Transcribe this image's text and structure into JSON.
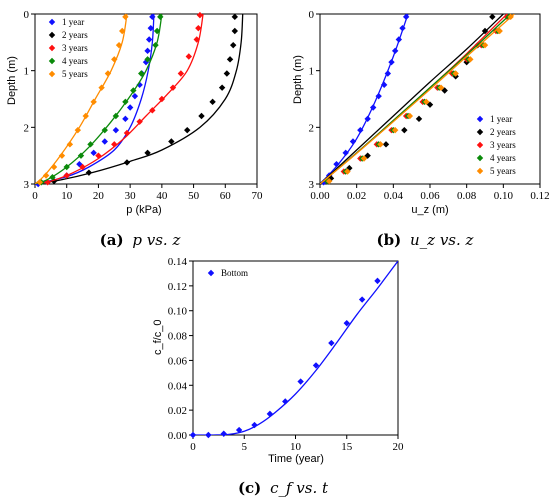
{
  "chart_data": [
    {
      "id": "a",
      "type": "scatter",
      "caption": {
        "letter": "(a)",
        "text": "p vs. z"
      },
      "xlabel": "p (kPa)",
      "ylabel": "Depth (m)",
      "xlim": [
        0,
        70
      ],
      "ylim": [
        0,
        3
      ],
      "y_inverted": true,
      "x_ticks": [
        "0",
        "10",
        "20",
        "30",
        "40",
        "50",
        "60",
        "70"
      ],
      "y_ticks": [
        "0",
        "1",
        "2",
        "3"
      ],
      "legend": "top-left",
      "series": [
        {
          "name": "1 year",
          "color": "#1010ff",
          "points": [
            [
              37,
              0.05
            ],
            [
              36.5,
              0.25
            ],
            [
              36,
              0.45
            ],
            [
              35.5,
              0.65
            ],
            [
              35,
              0.85
            ],
            [
              33.7,
              1.05
            ],
            [
              33,
              1.25
            ],
            [
              31.5,
              1.45
            ],
            [
              30,
              1.65
            ],
            [
              28.5,
              1.85
            ],
            [
              25.5,
              2.05
            ],
            [
              22,
              2.25
            ],
            [
              18.5,
              2.45
            ],
            [
              14,
              2.65
            ],
            [
              10,
              2.85
            ],
            [
              1,
              3.0
            ]
          ],
          "curve": [
            [
              37.5,
              0
            ],
            [
              37,
              0.5
            ],
            [
              35.7,
              1.0
            ],
            [
              33.5,
              1.5
            ],
            [
              30,
              2.0
            ],
            [
              25,
              2.4
            ],
            [
              17,
              2.7
            ],
            [
              10,
              2.87
            ],
            [
              0,
              3.0
            ]
          ]
        },
        {
          "name": "2 years",
          "color": "#000000",
          "points": [
            [
              63,
              0.05
            ],
            [
              63,
              0.3
            ],
            [
              62.5,
              0.55
            ],
            [
              61.5,
              0.8
            ],
            [
              60.5,
              1.05
            ],
            [
              59,
              1.3
            ],
            [
              56,
              1.55
            ],
            [
              52.5,
              1.8
            ],
            [
              48,
              2.05
            ],
            [
              43,
              2.25
            ],
            [
              35.5,
              2.45
            ],
            [
              29,
              2.62
            ],
            [
              17,
              2.8
            ],
            [
              6,
              2.95
            ]
          ],
          "curve": [
            [
              65.5,
              0
            ],
            [
              65,
              0.5
            ],
            [
              63.5,
              1.0
            ],
            [
              60,
              1.5
            ],
            [
              52,
              2.0
            ],
            [
              40,
              2.4
            ],
            [
              30,
              2.6
            ],
            [
              18,
              2.8
            ],
            [
              8,
              2.93
            ],
            [
              0,
              3.0
            ]
          ]
        },
        {
          "name": "3 years",
          "color": "#ff1010",
          "points": [
            [
              52,
              0.02
            ],
            [
              51.5,
              0.25
            ],
            [
              51,
              0.45
            ],
            [
              48.5,
              0.75
            ],
            [
              46,
              1.05
            ],
            [
              43.5,
              1.3
            ],
            [
              40,
              1.5
            ],
            [
              37,
              1.7
            ],
            [
              33,
              1.9
            ],
            [
              29,
              2.1
            ],
            [
              25,
              2.3
            ],
            [
              20,
              2.5
            ],
            [
              15,
              2.7
            ],
            [
              10,
              2.85
            ],
            [
              4,
              2.97
            ]
          ],
          "curve": [
            [
              53,
              0
            ],
            [
              51.5,
              0.5
            ],
            [
              48,
              1.0
            ],
            [
              42,
              1.4
            ],
            [
              35,
              1.8
            ],
            [
              28,
              2.2
            ],
            [
              20,
              2.55
            ],
            [
              12,
              2.8
            ],
            [
              5,
              2.95
            ],
            [
              0,
              3.0
            ]
          ]
        },
        {
          "name": "4 years",
          "color": "#0a8a0a",
          "points": [
            [
              39.5,
              0.05
            ],
            [
              38.5,
              0.3
            ],
            [
              38,
              0.55
            ],
            [
              35.5,
              0.8
            ],
            [
              33.5,
              1.05
            ],
            [
              31,
              1.35
            ],
            [
              28.5,
              1.55
            ],
            [
              25.5,
              1.8
            ],
            [
              22,
              2.05
            ],
            [
              17.5,
              2.3
            ],
            [
              14.5,
              2.5
            ],
            [
              10,
              2.7
            ],
            [
              5.5,
              2.88
            ],
            [
              2,
              2.97
            ]
          ],
          "curve": [
            [
              40,
              0
            ],
            [
              38.5,
              0.5
            ],
            [
              35,
              1.0
            ],
            [
              30,
              1.45
            ],
            [
              24,
              1.9
            ],
            [
              17,
              2.35
            ],
            [
              10,
              2.7
            ],
            [
              4,
              2.92
            ],
            [
              0,
              3.0
            ]
          ]
        },
        {
          "name": "5 years",
          "color": "#ff8c00",
          "points": [
            [
              28.5,
              0.05
            ],
            [
              27.5,
              0.3
            ],
            [
              26.5,
              0.55
            ],
            [
              25,
              0.8
            ],
            [
              23,
              1.05
            ],
            [
              21,
              1.3
            ],
            [
              18.5,
              1.55
            ],
            [
              16,
              1.8
            ],
            [
              13.5,
              2.05
            ],
            [
              11,
              2.3
            ],
            [
              8.5,
              2.5
            ],
            [
              6,
              2.7
            ],
            [
              3.5,
              2.85
            ],
            [
              1.5,
              2.97
            ]
          ],
          "curve": [
            [
              29,
              0
            ],
            [
              27.5,
              0.5
            ],
            [
              24,
              1.0
            ],
            [
              19,
              1.5
            ],
            [
              14,
              2.0
            ],
            [
              8,
              2.5
            ],
            [
              3,
              2.85
            ],
            [
              0,
              3.0
            ]
          ]
        }
      ]
    },
    {
      "id": "b",
      "type": "scatter",
      "caption": {
        "letter": "(b)",
        "text": "u_z vs. z"
      },
      "xlabel": "u_z (m)",
      "ylabel": "Depth (m)",
      "xlim": [
        0,
        0.12
      ],
      "ylim": [
        0,
        3
      ],
      "y_inverted": true,
      "x_ticks": [
        "0.00",
        "0.02",
        "0.04",
        "0.06",
        "0.08",
        "0.10",
        "0.12"
      ],
      "y_ticks": [
        "0",
        "1",
        "2",
        "3"
      ],
      "legend": "bottom-right",
      "series": [
        {
          "name": "1 year",
          "color": "#1010ff",
          "points": [
            [
              0.047,
              0.05
            ],
            [
              0.045,
              0.25
            ],
            [
              0.043,
              0.45
            ],
            [
              0.041,
              0.65
            ],
            [
              0.039,
              0.85
            ],
            [
              0.037,
              1.05
            ],
            [
              0.035,
              1.25
            ],
            [
              0.032,
              1.45
            ],
            [
              0.029,
              1.65
            ],
            [
              0.026,
              1.85
            ],
            [
              0.022,
              2.05
            ],
            [
              0.018,
              2.25
            ],
            [
              0.014,
              2.45
            ],
            [
              0.009,
              2.65
            ],
            [
              0.005,
              2.85
            ],
            [
              0.002,
              2.97
            ]
          ],
          "curve": [
            [
              0.048,
              0
            ],
            [
              0.04,
              0.75
            ],
            [
              0.03,
              1.55
            ],
            [
              0.02,
              2.2
            ],
            [
              0.01,
              2.65
            ],
            [
              0,
              3.0
            ]
          ]
        },
        {
          "name": "2 years",
          "color": "#000000",
          "points": [
            [
              0.094,
              0.05
            ],
            [
              0.09,
              0.3
            ],
            [
              0.086,
              0.55
            ],
            [
              0.08,
              0.85
            ],
            [
              0.074,
              1.1
            ],
            [
              0.068,
              1.35
            ],
            [
              0.06,
              1.6
            ],
            [
              0.054,
              1.85
            ],
            [
              0.046,
              2.05
            ],
            [
              0.036,
              2.3
            ],
            [
              0.026,
              2.5
            ],
            [
              0.016,
              2.72
            ],
            [
              0.006,
              2.9
            ]
          ],
          "curve": [
            [
              0.1,
              0
            ],
            [
              0.08,
              0.62
            ],
            [
              0.06,
              1.2
            ],
            [
              0.04,
              1.8
            ],
            [
              0.02,
              2.4
            ],
            [
              0,
              3.0
            ]
          ]
        },
        {
          "name": "3 years",
          "color": "#ff1010",
          "points": [
            [
              0.102,
              0.05
            ],
            [
              0.096,
              0.3
            ],
            [
              0.088,
              0.55
            ],
            [
              0.08,
              0.8
            ],
            [
              0.072,
              1.05
            ],
            [
              0.064,
              1.3
            ],
            [
              0.056,
              1.55
            ],
            [
              0.047,
              1.8
            ],
            [
              0.039,
              2.05
            ],
            [
              0.031,
              2.3
            ],
            [
              0.022,
              2.55
            ],
            [
              0.013,
              2.78
            ],
            [
              0.004,
              2.95
            ]
          ],
          "curve": [
            [
              0.102,
              0
            ],
            [
              0.08,
              0.7
            ],
            [
              0.06,
              1.3
            ],
            [
              0.04,
              1.88
            ],
            [
              0.02,
              2.45
            ],
            [
              0,
              3.0
            ]
          ]
        },
        {
          "name": "4 years",
          "color": "#0a8a0a",
          "points": [
            [
              0.103,
              0.05
            ],
            [
              0.097,
              0.3
            ],
            [
              0.089,
              0.55
            ],
            [
              0.081,
              0.8
            ],
            [
              0.073,
              1.05
            ],
            [
              0.065,
              1.3
            ],
            [
              0.057,
              1.55
            ],
            [
              0.048,
              1.8
            ],
            [
              0.04,
              2.05
            ],
            [
              0.032,
              2.3
            ],
            [
              0.023,
              2.55
            ],
            [
              0.014,
              2.78
            ],
            [
              0.004,
              2.95
            ]
          ],
          "curve": [
            [
              0.104,
              0
            ],
            [
              0.08,
              0.72
            ],
            [
              0.06,
              1.3
            ],
            [
              0.04,
              1.88
            ],
            [
              0.02,
              2.45
            ],
            [
              0,
              3.0
            ]
          ]
        },
        {
          "name": "5 years",
          "color": "#ff8c00",
          "points": [
            [
              0.104,
              0.05
            ],
            [
              0.098,
              0.3
            ],
            [
              0.09,
              0.55
            ],
            [
              0.082,
              0.8
            ],
            [
              0.074,
              1.05
            ],
            [
              0.066,
              1.3
            ],
            [
              0.058,
              1.55
            ],
            [
              0.049,
              1.8
            ],
            [
              0.041,
              2.05
            ],
            [
              0.033,
              2.3
            ],
            [
              0.024,
              2.55
            ],
            [
              0.015,
              2.78
            ],
            [
              0.005,
              2.95
            ]
          ],
          "curve": [
            [
              0.106,
              0
            ],
            [
              0.08,
              0.75
            ],
            [
              0.06,
              1.33
            ],
            [
              0.04,
              1.9
            ],
            [
              0.02,
              2.46
            ],
            [
              0,
              3.0
            ]
          ]
        }
      ]
    },
    {
      "id": "c",
      "type": "scatter",
      "caption": {
        "letter": "(c)",
        "text": "c_f vs. t"
      },
      "xlabel": "Time (year)",
      "ylabel": "c_f/c_0",
      "xlim": [
        0,
        20
      ],
      "ylim": [
        0,
        0.14
      ],
      "y_inverted": false,
      "x_ticks": [
        "0",
        "5",
        "10",
        "15",
        "20"
      ],
      "y_ticks": [
        "0.00",
        "0.02",
        "0.04",
        "0.06",
        "0.08",
        "0.10",
        "0.12",
        "0.14"
      ],
      "legend": "top-left",
      "series": [
        {
          "name": "Bottom",
          "color": "#1010ff",
          "points": [
            [
              0,
              0.0
            ],
            [
              1.5,
              0.0
            ],
            [
              3,
              0.001
            ],
            [
              4.5,
              0.004
            ],
            [
              6,
              0.008
            ],
            [
              7.5,
              0.017
            ],
            [
              9,
              0.027
            ],
            [
              10.5,
              0.043
            ],
            [
              12,
              0.056
            ],
            [
              13.5,
              0.074
            ],
            [
              15,
              0.09
            ],
            [
              16.5,
              0.109
            ],
            [
              18,
              0.124
            ]
          ],
          "curve": [
            [
              0,
              0
            ],
            [
              2,
              0
            ],
            [
              3.5,
              0.0005
            ],
            [
              5,
              0.003
            ],
            [
              6.5,
              0.009
            ],
            [
              8,
              0.018
            ],
            [
              10,
              0.033
            ],
            [
              12,
              0.052
            ],
            [
              14,
              0.074
            ],
            [
              16,
              0.097
            ],
            [
              18,
              0.118
            ],
            [
              20,
              0.14
            ]
          ]
        }
      ]
    }
  ]
}
